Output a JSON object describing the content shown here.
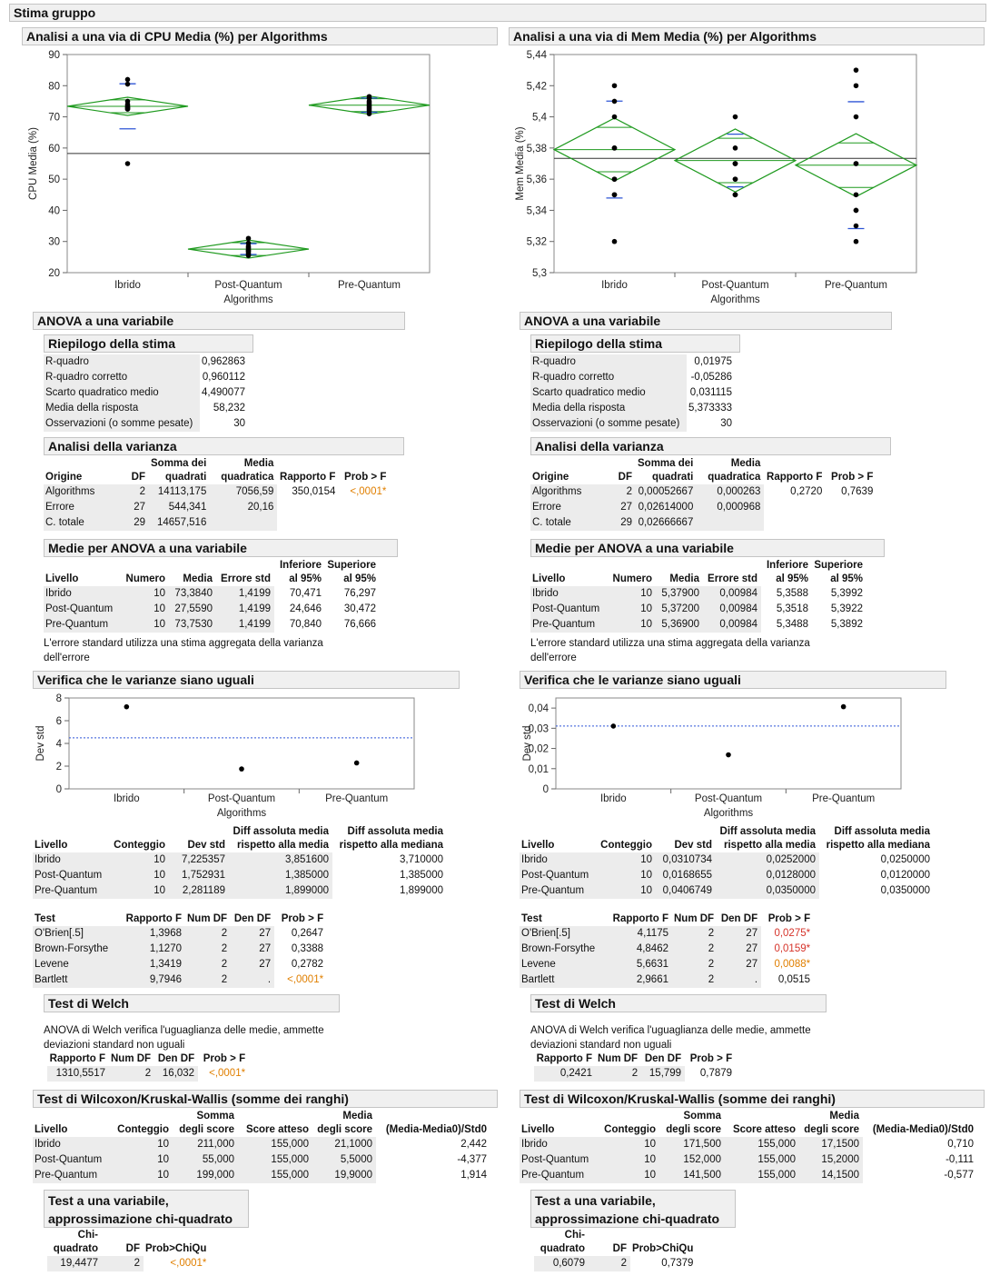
{
  "title": "Stima gruppo",
  "left": {
    "plot_title": "Analisi a una via di CPU Media (%) per Algorithms",
    "anova_title": "ANOVA a una variabile",
    "fit": {
      "title": "Riepilogo della stima",
      "rows": [
        {
          "label": "R-quadro",
          "value": "0,962863"
        },
        {
          "label": "R-quadro corretto",
          "value": "0,960112"
        },
        {
          "label": "Scarto quadratico medio",
          "value": "4,490077"
        },
        {
          "label": "Media della risposta",
          "value": "58,232"
        },
        {
          "label": "Osservazioni (o somme pesate)",
          "value": "30"
        }
      ]
    },
    "anova": {
      "title": "Analisi della varianza",
      "rows": [
        {
          "src": "Algorithms",
          "df": "2",
          "ss": "14113,175",
          "ms": "7056,59",
          "f": "350,0154",
          "p": "<,0001*"
        },
        {
          "src": "Errore",
          "df": "27",
          "ss": "544,341",
          "ms": "20,16",
          "f": "",
          "p": ""
        },
        {
          "src": "C. totale",
          "df": "29",
          "ss": "14657,516",
          "ms": "",
          "f": "",
          "p": ""
        }
      ]
    },
    "means": {
      "title": "Medie per ANOVA a una variabile",
      "rows": [
        {
          "lvl": "Ibrido",
          "n": "10",
          "mean": "73,3840",
          "se": "1,4199",
          "lo": "70,471",
          "hi": "76,297"
        },
        {
          "lvl": "Post-Quantum",
          "n": "10",
          "mean": "27,5590",
          "se": "1,4199",
          "lo": "24,646",
          "hi": "30,472"
        },
        {
          "lvl": "Pre-Quantum",
          "n": "10",
          "mean": "73,7530",
          "se": "1,4199",
          "lo": "70,840",
          "hi": "76,666"
        }
      ]
    },
    "var_title": "Verifica che le varianze siano uguali",
    "sd": {
      "rows": [
        {
          "lvl": "Ibrido",
          "n": "10",
          "sd": "7,225357",
          "adm": "3,851600",
          "admed": "3,710000"
        },
        {
          "lvl": "Post-Quantum",
          "n": "10",
          "sd": "1,752931",
          "adm": "1,385000",
          "admed": "1,385000"
        },
        {
          "lvl": "Pre-Quantum",
          "n": "10",
          "sd": "2,281189",
          "adm": "1,899000",
          "admed": "1,899000"
        }
      ]
    },
    "tests": {
      "rows": [
        {
          "test": "O'Brien[.5]",
          "f": "1,3968",
          "ndf": "2",
          "ddf": "27",
          "p": "0,2647",
          "sig": ""
        },
        {
          "test": "Brown-Forsythe",
          "f": "1,1270",
          "ndf": "2",
          "ddf": "27",
          "p": "0,3388",
          "sig": ""
        },
        {
          "test": "Levene",
          "f": "1,3419",
          "ndf": "2",
          "ddf": "27",
          "p": "0,2782",
          "sig": ""
        },
        {
          "test": "Bartlett",
          "f": "9,7946",
          "ndf": "2",
          "ddf": ".",
          "p": "<,0001*",
          "sig": "o"
        }
      ]
    },
    "welch": {
      "f": "1310,5517",
      "ndf": "2",
      "ddf": "16,032",
      "p": "<,0001*",
      "sig": "o"
    },
    "wilcoxon": {
      "rows": [
        {
          "lvl": "Ibrido",
          "n": "10",
          "sum": "211,000",
          "exp": "155,000",
          "mean": "21,1000",
          "z": "2,442"
        },
        {
          "lvl": "Post-Quantum",
          "n": "10",
          "sum": "55,000",
          "exp": "155,000",
          "mean": "5,5000",
          "z": "-4,377"
        },
        {
          "lvl": "Pre-Quantum",
          "n": "10",
          "sum": "199,000",
          "exp": "155,000",
          "mean": "19,9000",
          "z": "1,914"
        }
      ]
    },
    "chi": {
      "chi": "19,4477",
      "df": "2",
      "p": "<,0001*",
      "sig": "o"
    }
  },
  "right": {
    "plot_title": "Analisi a una via di Mem Media (%) per Algorithms",
    "anova_title": "ANOVA a una variabile",
    "fit": {
      "title": "Riepilogo della stima",
      "rows": [
        {
          "label": "R-quadro",
          "value": "0,01975"
        },
        {
          "label": "R-quadro corretto",
          "value": "-0,05286"
        },
        {
          "label": "Scarto quadratico medio",
          "value": "0,031115"
        },
        {
          "label": "Media della risposta",
          "value": "5,373333"
        },
        {
          "label": "Osservazioni (o somme pesate)",
          "value": "30"
        }
      ]
    },
    "anova": {
      "title": "Analisi della varianza",
      "rows": [
        {
          "src": "Algorithms",
          "df": "2",
          "ss": "0,00052667",
          "ms": "0,000263",
          "f": "0,2720",
          "p": "0,7639"
        },
        {
          "src": "Errore",
          "df": "27",
          "ss": "0,02614000",
          "ms": "0,000968",
          "f": "",
          "p": ""
        },
        {
          "src": "C. totale",
          "df": "29",
          "ss": "0,02666667",
          "ms": "",
          "f": "",
          "p": ""
        }
      ]
    },
    "means": {
      "title": "Medie per ANOVA a una variabile",
      "rows": [
        {
          "lvl": "Ibrido",
          "n": "10",
          "mean": "5,37900",
          "se": "0,00984",
          "lo": "5,3588",
          "hi": "5,3992"
        },
        {
          "lvl": "Post-Quantum",
          "n": "10",
          "mean": "5,37200",
          "se": "0,00984",
          "lo": "5,3518",
          "hi": "5,3922"
        },
        {
          "lvl": "Pre-Quantum",
          "n": "10",
          "mean": "5,36900",
          "se": "0,00984",
          "lo": "5,3488",
          "hi": "5,3892"
        }
      ]
    },
    "var_title": "Verifica che le varianze siano uguali",
    "sd": {
      "rows": [
        {
          "lvl": "Ibrido",
          "n": "10",
          "sd": "0,0310734",
          "adm": "0,0252000",
          "admed": "0,0250000"
        },
        {
          "lvl": "Post-Quantum",
          "n": "10",
          "sd": "0,0168655",
          "adm": "0,0128000",
          "admed": "0,0120000"
        },
        {
          "lvl": "Pre-Quantum",
          "n": "10",
          "sd": "0,0406749",
          "adm": "0,0350000",
          "admed": "0,0350000"
        }
      ]
    },
    "tests": {
      "rows": [
        {
          "test": "O'Brien[.5]",
          "f": "4,1175",
          "ndf": "2",
          "ddf": "27",
          "p": "0,0275*",
          "sig": "r"
        },
        {
          "test": "Brown-Forsythe",
          "f": "4,8462",
          "ndf": "2",
          "ddf": "27",
          "p": "0,0159*",
          "sig": "r"
        },
        {
          "test": "Levene",
          "f": "5,6631",
          "ndf": "2",
          "ddf": "27",
          "p": "0,0088*",
          "sig": "o"
        },
        {
          "test": "Bartlett",
          "f": "2,9661",
          "ndf": "2",
          "ddf": ".",
          "p": "0,0515",
          "sig": ""
        }
      ]
    },
    "welch": {
      "f": "0,2421",
      "ndf": "2",
      "ddf": "15,799",
      "p": "0,7879",
      "sig": ""
    },
    "wilcoxon": {
      "rows": [
        {
          "lvl": "Ibrido",
          "n": "10",
          "sum": "171,500",
          "exp": "155,000",
          "mean": "17,1500",
          "z": "0,710"
        },
        {
          "lvl": "Post-Quantum",
          "n": "10",
          "sum": "152,000",
          "exp": "155,000",
          "mean": "15,2000",
          "z": "-0,111"
        },
        {
          "lvl": "Pre-Quantum",
          "n": "10",
          "sum": "141,500",
          "exp": "155,000",
          "mean": "14,1500",
          "z": "-0,577"
        }
      ]
    },
    "chi": {
      "chi": "0,6079",
      "df": "2",
      "p": "0,7379",
      "sig": ""
    }
  },
  "labels": {
    "fit_title": "Riepilogo della stima",
    "origine": "Origine",
    "df": "DF",
    "ss1": "Somma dei",
    "ss2": "quadrati",
    "ms1": "Media",
    "ms2": "quadratica",
    "f": "Rapporto F",
    "p": "Prob > F",
    "livello": "Livello",
    "numero": "Numero",
    "media": "Media",
    "errstd": "Errore std",
    "inf1": "Inferiore",
    "inf2": "al 95%",
    "sup1": "Superiore",
    "sup2": "al 95%",
    "note1": "L'errore standard utilizza una stima aggregata della varianza",
    "note2": "dell'errore",
    "conteggio": "Conteggio",
    "devstd": "Dev std",
    "adm1": "Diff assoluta media",
    "adm2": "rispetto alla media",
    "admed1": "Diff assoluta media",
    "admed2": "rispetto alla mediana",
    "test": "Test",
    "numdf": "Num DF",
    "dendf": "Den DF",
    "welch_title": "Test di Welch",
    "welch_note1": "ANOVA di Welch verifica l'uguaglianza delle medie, ammette",
    "welch_note2": "deviazioni standard non uguali",
    "wilcoxon_title": "Test di Wilcoxon/Kruskal-Wallis (somme dei ranghi)",
    "somma1": "Somma",
    "somma2": "degli score",
    "atteso": "Score atteso",
    "mscore1": "Media",
    "mscore2": "degli score",
    "z": "(Media-Media0)/Std0",
    "chi_title1": "Test a una variabile,",
    "chi_title2": "approssimazione chi-quadrato",
    "chi1": "Chi-",
    "chi2": "quadrato",
    "probchi": "Prob>ChiQu"
  },
  "chart_data": [
    {
      "type": "scatter",
      "title": "Analisi a una via di CPU Media (%) per Algorithms",
      "xlabel": "Algorithms",
      "ylabel": "CPU Media (%)",
      "categories": [
        "Ibrido",
        "Post-Quantum",
        "Pre-Quantum"
      ],
      "ylim": [
        20,
        90
      ],
      "yticks": [
        "20",
        "30",
        "40",
        "50",
        "60",
        "70",
        "80",
        "90"
      ],
      "ytickvals": [
        20,
        30,
        40,
        50,
        60,
        70,
        80,
        90
      ],
      "grand_mean": 58.232,
      "means": [
        73.384,
        27.559,
        73.753
      ],
      "ci": [
        [
          70.471,
          76.297
        ],
        [
          24.646,
          30.472
        ],
        [
          70.84,
          76.666
        ]
      ],
      "sd_marks": [
        [
          66.16,
          80.61
        ],
        [
          25.81,
          29.31
        ],
        [
          71.47,
          76.03
        ]
      ],
      "points": [
        [
          82,
          80.5,
          75,
          74,
          73.5,
          73,
          73,
          72.5,
          72.5,
          55
        ],
        [
          31,
          29.5,
          28.5,
          28,
          27.5,
          27,
          27,
          26.5,
          26,
          25.5
        ],
        [
          76.5,
          76,
          75,
          74.5,
          74,
          73.5,
          73,
          72.5,
          72,
          71
        ]
      ]
    },
    {
      "type": "scatter",
      "title": "Analisi a una via di Mem Media (%) per Algorithms",
      "xlabel": "Algorithms",
      "ylabel": "Mem Media (%)",
      "categories": [
        "Ibrido",
        "Post-Quantum",
        "Pre-Quantum"
      ],
      "ylim": [
        5.3,
        5.44
      ],
      "yticks": [
        "5,3",
        "5,32",
        "5,34",
        "5,36",
        "5,38",
        "5,4",
        "5,42",
        "5,44"
      ],
      "ytickvals": [
        5.3,
        5.32,
        5.34,
        5.36,
        5.38,
        5.4,
        5.42,
        5.44
      ],
      "grand_mean": 5.373333,
      "means": [
        5.379,
        5.372,
        5.369
      ],
      "ci": [
        [
          5.3588,
          5.3992
        ],
        [
          5.3518,
          5.3922
        ],
        [
          5.3488,
          5.3892
        ]
      ],
      "sd_marks": [
        [
          5.3479,
          5.4101
        ],
        [
          5.3551,
          5.3889
        ],
        [
          5.3283,
          5.4097
        ]
      ],
      "points": [
        [
          5.42,
          5.41,
          5.4,
          5.38,
          5.38,
          5.36,
          5.36,
          5.35,
          5.35,
          5.32
        ],
        [
          5.4,
          5.38,
          5.37,
          5.37,
          5.37,
          5.36,
          5.36,
          5.35,
          5.35,
          5.35
        ],
        [
          5.43,
          5.42,
          5.4,
          5.37,
          5.37,
          5.35,
          5.34,
          5.34,
          5.33,
          5.32
        ]
      ]
    },
    {
      "type": "scatter",
      "title": "Verifica che le varianze siano uguali",
      "xlabel": "Algorithms",
      "ylabel": "Dev std",
      "categories": [
        "Ibrido",
        "Post-Quantum",
        "Pre-Quantum"
      ],
      "ylim": [
        0,
        8
      ],
      "yticks": [
        "0",
        "2",
        "4",
        "6",
        "8"
      ],
      "ytickvals": [
        0,
        2,
        4,
        6,
        8
      ],
      "ref_line": 4.49,
      "values": [
        7.225357,
        1.752931,
        2.281189
      ]
    },
    {
      "type": "scatter",
      "title": "Verifica che le varianze siano uguali",
      "xlabel": "Algorithms",
      "ylabel": "Dev std",
      "categories": [
        "Ibrido",
        "Post-Quantum",
        "Pre-Quantum"
      ],
      "ylim": [
        0,
        0.045
      ],
      "yticks": [
        "0",
        "0,01",
        "0,02",
        "0,03",
        "0,04"
      ],
      "ytickvals": [
        0,
        0.01,
        0.02,
        0.03,
        0.04
      ],
      "ref_line": 0.0311,
      "values": [
        0.0310734,
        0.0168655,
        0.0406749
      ]
    }
  ]
}
